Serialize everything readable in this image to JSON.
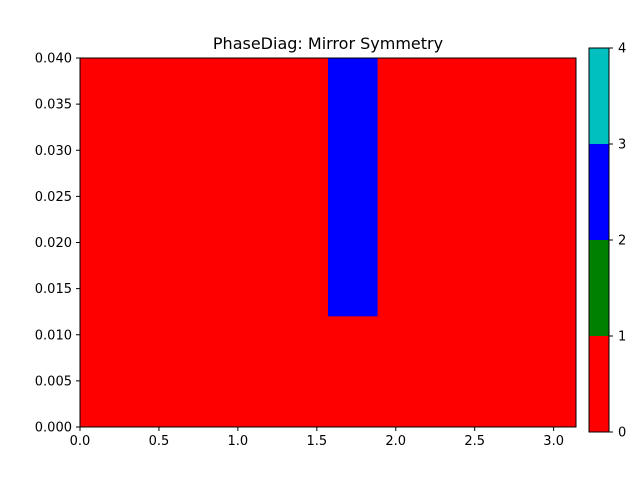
{
  "chart_data": {
    "type": "heatmap",
    "title": "PhaseDiag: Mirror Symmetry",
    "xlabel": "",
    "ylabel": "",
    "xlim": [
      0,
      3.1416
    ],
    "ylim": [
      0,
      0.04
    ],
    "grid": false,
    "x_ticks": [
      0.0,
      0.5,
      1.0,
      1.5,
      2.0,
      2.5,
      3.0
    ],
    "x_tick_labels": [
      "0.0",
      "0.5",
      "1.0",
      "1.5",
      "2.0",
      "2.5",
      "3.0"
    ],
    "y_ticks": [
      0.0,
      0.005,
      0.01,
      0.015,
      0.02,
      0.025,
      0.03,
      0.035,
      0.04
    ],
    "y_tick_labels": [
      "0.000",
      "0.005",
      "0.010",
      "0.015",
      "0.020",
      "0.025",
      "0.030",
      "0.035",
      "0.040"
    ],
    "background_value": 0,
    "regions": [
      {
        "value": 0,
        "x": [
          0,
          3.1416
        ],
        "y": [
          0,
          0.04
        ]
      },
      {
        "value": 2,
        "x": [
          1.5708,
          1.885
        ],
        "y": [
          0.012,
          0.04
        ]
      }
    ],
    "colorbar": {
      "range": [
        0,
        4
      ],
      "ticks": [
        0,
        1,
        2,
        3,
        4
      ],
      "tick_labels": [
        "0",
        "1",
        "2",
        "3",
        "4"
      ],
      "bins": [
        {
          "from": 0,
          "to": 1,
          "color": "#ff0000"
        },
        {
          "from": 1,
          "to": 2,
          "color": "#008000"
        },
        {
          "from": 2,
          "to": 3,
          "color": "#0000ff"
        },
        {
          "from": 3,
          "to": 4,
          "color": "#00bfbf"
        }
      ]
    }
  }
}
